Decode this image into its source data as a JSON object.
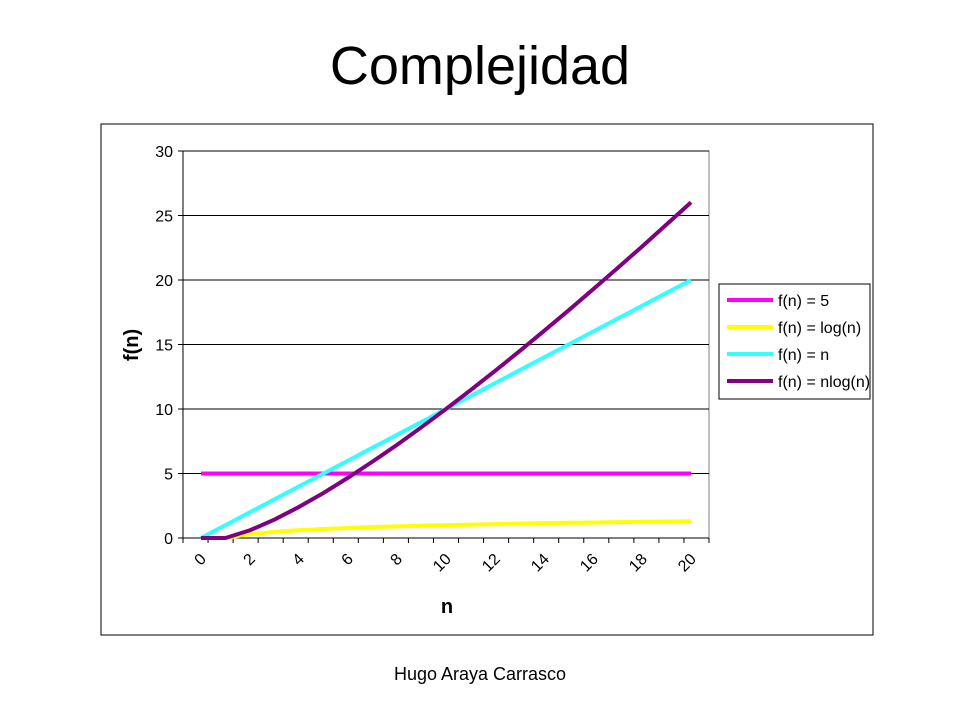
{
  "slide": {
    "title": "Complejidad",
    "footer": "Hugo Araya Carrasco"
  },
  "chart_data": {
    "type": "line",
    "xlabel": "n",
    "ylabel": "f(n)",
    "ylim": [
      0,
      30
    ],
    "yticks": [
      0,
      5,
      10,
      15,
      20,
      25,
      30
    ],
    "xticks": [
      0,
      2,
      4,
      6,
      8,
      10,
      12,
      14,
      16,
      18,
      20
    ],
    "grid": "horizontal",
    "legend": "right",
    "x": [
      0,
      1,
      2,
      3,
      4,
      5,
      6,
      7,
      8,
      9,
      10,
      11,
      12,
      13,
      14,
      15,
      16,
      17,
      18,
      19,
      20
    ],
    "series": [
      {
        "name": "f(n) = 5",
        "color": "#FF00FF",
        "values": [
          5,
          5,
          5,
          5,
          5,
          5,
          5,
          5,
          5,
          5,
          5,
          5,
          5,
          5,
          5,
          5,
          5,
          5,
          5,
          5,
          5
        ]
      },
      {
        "name": "f(n) = log(n)",
        "color": "#FFFF00",
        "values": [
          0,
          0,
          0.3,
          0.48,
          0.6,
          0.7,
          0.78,
          0.85,
          0.9,
          0.95,
          1,
          1.04,
          1.08,
          1.11,
          1.15,
          1.18,
          1.2,
          1.23,
          1.26,
          1.28,
          1.3
        ]
      },
      {
        "name": "f(n) = n",
        "color": "#33FFFF",
        "values": [
          0,
          1,
          2,
          3,
          4,
          5,
          6,
          7,
          8,
          9,
          10,
          11,
          12,
          13,
          14,
          15,
          16,
          17,
          18,
          19,
          20
        ]
      },
      {
        "name": "f(n) =  nlog(n)",
        "color": "#800080",
        "values": [
          0,
          0,
          0.6,
          1.43,
          2.41,
          3.49,
          4.67,
          5.92,
          7.22,
          8.59,
          10,
          11.46,
          12.95,
          14.48,
          16.05,
          17.64,
          19.27,
          20.92,
          22.59,
          24.3,
          26.02
        ]
      }
    ]
  }
}
